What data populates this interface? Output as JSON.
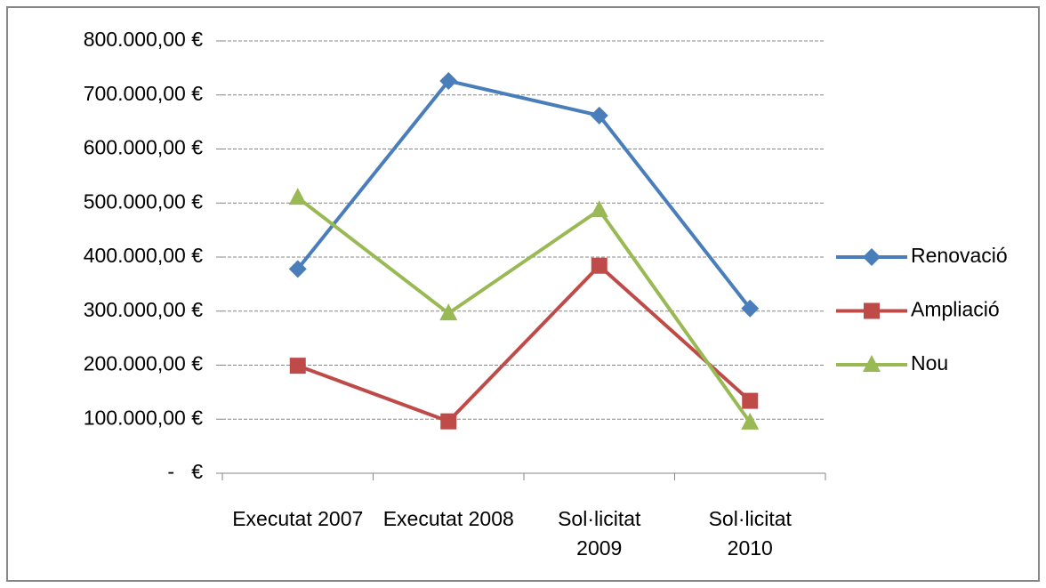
{
  "chart_data": {
    "type": "line",
    "categories": [
      "Executat 2007",
      "Executat 2008",
      "Sol·licitat 2009",
      "Sol·licitat 2010"
    ],
    "series": [
      {
        "name": "Renovació",
        "color": "#4a7ebb",
        "marker": "diamond",
        "values": [
          378000,
          726000,
          662000,
          305000
        ]
      },
      {
        "name": "Ampliació",
        "color": "#be4b48",
        "marker": "square",
        "values": [
          199000,
          96000,
          384000,
          134000
        ]
      },
      {
        "name": "Nou",
        "color": "#98b954",
        "marker": "triangle",
        "values": [
          510000,
          296000,
          487000,
          94000
        ]
      }
    ],
    "ylim": [
      0,
      800000
    ],
    "yticks": [
      {
        "value": 0,
        "label": "-   €"
      },
      {
        "value": 100000,
        "label": "100.000,00 €"
      },
      {
        "value": 200000,
        "label": "200.000,00 €"
      },
      {
        "value": 300000,
        "label": "300.000,00 €"
      },
      {
        "value": 400000,
        "label": "400.000,00 €"
      },
      {
        "value": 500000,
        "label": "500.000,00 €"
      },
      {
        "value": 600000,
        "label": "600.000,00 €"
      },
      {
        "value": 700000,
        "label": "700.000,00 €"
      },
      {
        "value": 800000,
        "label": "800.000,00 €"
      }
    ],
    "grid": true,
    "legend": "right"
  }
}
